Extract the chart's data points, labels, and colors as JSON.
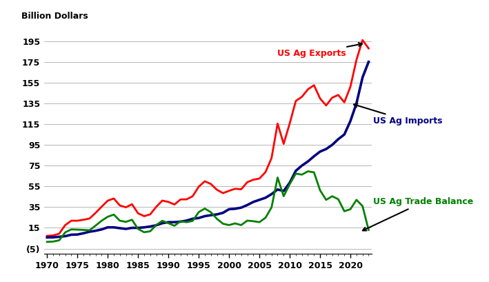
{
  "years": [
    1970,
    1971,
    1972,
    1973,
    1974,
    1975,
    1976,
    1977,
    1978,
    1979,
    1980,
    1981,
    1982,
    1983,
    1984,
    1985,
    1986,
    1987,
    1988,
    1989,
    1990,
    1991,
    1992,
    1993,
    1994,
    1995,
    1996,
    1997,
    1998,
    1999,
    2000,
    2001,
    2002,
    2003,
    2004,
    2005,
    2006,
    2007,
    2008,
    2009,
    2010,
    2011,
    2012,
    2013,
    2014,
    2015,
    2016,
    2017,
    2018,
    2019,
    2020,
    2021,
    2022,
    2023
  ],
  "exports": [
    7.3,
    7.7,
    9.4,
    17.7,
    21.9,
    21.9,
    22.8,
    24.0,
    29.4,
    35.4,
    41.2,
    43.3,
    36.6,
    34.8,
    37.8,
    29.0,
    26.3,
    28.0,
    35.3,
    41.3,
    40.0,
    37.5,
    42.4,
    42.5,
    45.5,
    54.7,
    59.9,
    57.3,
    51.7,
    48.5,
    50.7,
    52.7,
    52.2,
    59.0,
    61.4,
    62.5,
    68.7,
    82.2,
    115.5,
    96.0,
    115.7,
    137.3,
    141.3,
    148.5,
    152.5,
    139.7,
    133.0,
    140.5,
    143.1,
    136.0,
    151.0,
    177.0,
    196.0,
    188.0
  ],
  "imports": [
    5.8,
    5.9,
    6.4,
    7.0,
    8.4,
    8.6,
    9.8,
    11.3,
    12.2,
    13.5,
    15.5,
    15.5,
    14.7,
    14.0,
    15.0,
    15.0,
    15.5,
    16.3,
    17.5,
    19.5,
    20.5,
    20.5,
    21.0,
    22.0,
    23.8,
    24.5,
    26.3,
    27.2,
    28.0,
    29.5,
    33.0,
    33.4,
    34.5,
    37.0,
    40.0,
    42.0,
    44.0,
    47.5,
    52.0,
    50.5,
    58.5,
    70.0,
    75.0,
    79.0,
    84.0,
    88.5,
    91.0,
    95.0,
    100.5,
    105.0,
    118.0,
    135.0,
    160.0,
    175.0
  ],
  "balance": [
    1.5,
    1.8,
    3.0,
    10.7,
    13.5,
    13.3,
    13.0,
    12.7,
    17.2,
    21.9,
    25.7,
    27.8,
    21.9,
    20.8,
    22.8,
    14.0,
    10.8,
    11.7,
    17.8,
    21.8,
    19.5,
    17.0,
    21.4,
    20.5,
    21.7,
    30.2,
    33.6,
    30.1,
    23.7,
    19.0,
    17.7,
    19.3,
    17.7,
    22.0,
    21.4,
    20.5,
    24.7,
    34.7,
    63.5,
    45.5,
    57.2,
    67.3,
    66.3,
    69.5,
    68.5,
    51.2,
    42.0,
    45.5,
    42.6,
    31.0,
    33.0,
    42.0,
    36.0,
    13.0
  ],
  "export_color": "#ff0000",
  "import_color": "#000080",
  "balance_color": "#008000",
  "export_label": "US Ag Exports",
  "import_label": "US Ag Imports",
  "balance_label": "US Ag Trade Balance",
  "ylabel": "Billion Dollars",
  "yticks": [
    -5,
    15,
    35,
    55,
    75,
    95,
    115,
    135,
    155,
    175,
    195
  ],
  "ylim": [
    -10,
    202
  ],
  "xlim": [
    1969.5,
    2023.5
  ],
  "xticks": [
    1970,
    1975,
    1980,
    1985,
    1990,
    1995,
    2000,
    2005,
    2010,
    2015,
    2020
  ],
  "line_width": 2.0,
  "annotation_fontsize": 9
}
